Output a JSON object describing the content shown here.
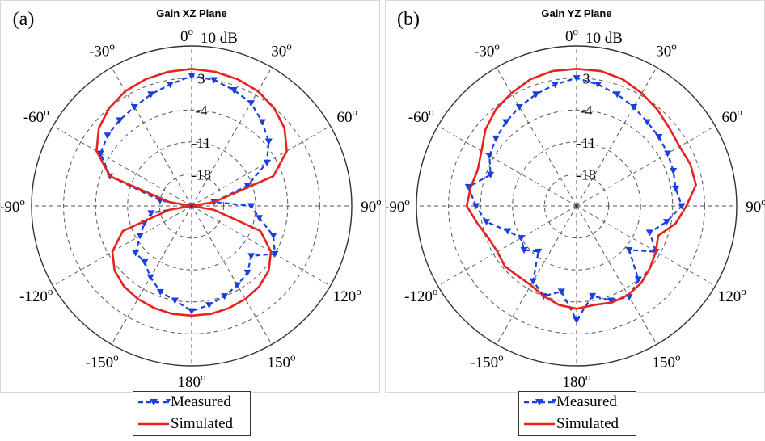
{
  "chart_data": [
    {
      "type": "polar",
      "panel_label": "(a)",
      "title": "Gain XZ Plane",
      "radial_unit": "10 dB",
      "radial_ticks": [
        3,
        -4,
        -11,
        -18
      ],
      "rlim": [
        -25,
        10
      ],
      "angle_ticks": [
        "0",
        "30",
        "60",
        "90",
        "120",
        "150",
        "180",
        "-150",
        "-120",
        "-90",
        "-60",
        "-30"
      ],
      "degree_mark": "o",
      "series": [
        {
          "name": "Measured",
          "color": "#1a3fe0",
          "style": "dashed-triangle",
          "theta": [
            -90,
            -80,
            -70,
            -60,
            -50,
            -40,
            -30,
            -20,
            -10,
            0,
            10,
            20,
            30,
            40,
            50,
            60,
            70,
            80,
            90,
            100,
            110,
            120,
            130,
            140,
            150,
            160,
            170,
            180,
            -170,
            -160,
            -150,
            -140,
            -130,
            -120,
            -110,
            -100
          ],
          "r": [
            -25,
            -18,
            -6,
            -2,
            -1,
            -0.5,
            0,
            1,
            2,
            3.5,
            3,
            2,
            1,
            -1,
            -3,
            -6,
            -12,
            -20,
            -12,
            -10,
            -6,
            -4,
            -8,
            -6,
            -5,
            -4,
            -3,
            -2,
            -4,
            -5,
            -7,
            -9,
            -9,
            -12,
            -14,
            -16
          ]
        },
        {
          "name": "Simulated",
          "color": "#e8231e",
          "style": "solid",
          "theta": [
            -90,
            -80,
            -70,
            -60,
            -50,
            -40,
            -30,
            -20,
            -10,
            0,
            10,
            20,
            30,
            40,
            50,
            60,
            70,
            80,
            90,
            100,
            110,
            120,
            130,
            140,
            150,
            160,
            170,
            180,
            -170,
            -160,
            -150,
            -140,
            -130,
            -120,
            -110,
            -100
          ],
          "r": [
            -25,
            -20,
            -6,
            -1,
            1.5,
            3,
            4,
            4.5,
            4.8,
            5,
            4.8,
            4.5,
            4,
            3,
            1.5,
            -1,
            -6,
            -20,
            -25,
            -20,
            -9,
            -5,
            -3,
            -2,
            -1.5,
            -1.2,
            -1,
            -1,
            -1,
            -1.2,
            -1.5,
            -2,
            -3,
            -5,
            -9,
            -20
          ]
        }
      ]
    },
    {
      "type": "polar",
      "panel_label": "(b)",
      "title": "Gain YZ Plane",
      "radial_unit": "10 dB",
      "radial_ticks": [
        3,
        -4,
        -11,
        -18
      ],
      "rlim": [
        -25,
        10
      ],
      "angle_ticks": [
        "0",
        "30",
        "60",
        "90",
        "120",
        "150",
        "180",
        "-150",
        "-120",
        "-90",
        "-60",
        "-30"
      ],
      "degree_mark": "o",
      "series": [
        {
          "name": "Measured",
          "color": "#1a3fe0",
          "style": "dashed-triangle",
          "theta": [
            -90,
            -80,
            -70,
            -60,
            -50,
            -40,
            -30,
            -20,
            -10,
            0,
            10,
            20,
            30,
            40,
            50,
            60,
            70,
            80,
            90,
            100,
            110,
            120,
            130,
            140,
            150,
            160,
            170,
            180,
            -170,
            -160,
            -150,
            -140,
            -130,
            -120,
            -110,
            -100
          ],
          "r": [
            -3,
            -1,
            -5,
            -3,
            -2,
            -1,
            0,
            1,
            2,
            3,
            2,
            1,
            0,
            -1,
            -1.5,
            -2,
            -2.5,
            -3,
            -2,
            -5,
            -8,
            -5,
            -10,
            -4,
            -2,
            -3,
            -5,
            0,
            -6,
            -4,
            -6,
            -12,
            -10,
            -11,
            -9,
            -5
          ]
        },
        {
          "name": "Simulated",
          "color": "#e8231e",
          "style": "solid",
          "theta": [
            -90,
            -80,
            -70,
            -60,
            -50,
            -40,
            -30,
            -20,
            -10,
            0,
            10,
            20,
            30,
            40,
            50,
            60,
            70,
            80,
            90,
            100,
            110,
            120,
            130,
            140,
            150,
            160,
            170,
            180,
            -170,
            -160,
            -150,
            -140,
            -130,
            -120,
            -110,
            -100
          ],
          "r": [
            -1,
            -1.5,
            -2,
            -1,
            1,
            2.5,
            3.5,
            4.5,
            5,
            5,
            5,
            4.5,
            3.5,
            2.5,
            1.5,
            1,
            1.5,
            1.5,
            -1,
            -3,
            -6,
            -5,
            -4,
            -3,
            -2.5,
            -2.5,
            -3,
            -2.5,
            -3,
            -4,
            -5,
            -5,
            -4.5,
            -5,
            -4.5,
            -3
          ]
        }
      ]
    }
  ],
  "legend": {
    "measured_label": "Measured",
    "simulated_label": "Simulated"
  }
}
